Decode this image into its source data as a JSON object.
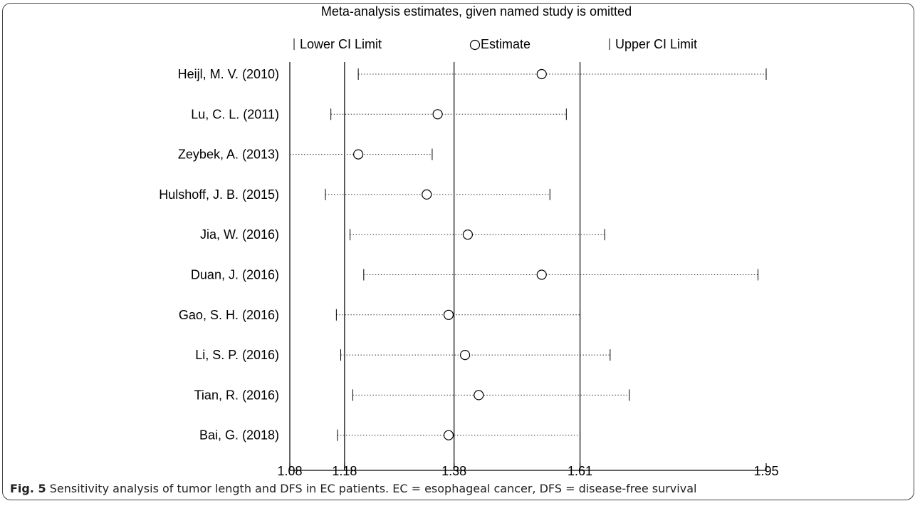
{
  "caption": {
    "label": "Fig. 5",
    "text": "Sensitivity analysis of tumor length and DFS in EC patients. EC = esophageal cancer, DFS = disease-free survival"
  },
  "chart_data": {
    "type": "forest-sensitivity",
    "title": "Meta-analysis estimates, given named study is omitted",
    "legend": {
      "lower": "Lower CI Limit",
      "estimate": "Estimate",
      "upper": "Upper CI Limit",
      "placement": "top"
    },
    "xlim": [
      1.08,
      1.95
    ],
    "x_ticks": [
      1.08,
      1.18,
      1.38,
      1.61,
      1.95
    ],
    "x_tick_labels": [
      "1.08",
      "1.18",
      "1.38",
      "1.61",
      "1.95"
    ],
    "reference_lines": [
      1.18,
      1.38,
      1.61
    ],
    "studies": [
      {
        "name": "Heijl, M. V. (2010)",
        "lower": 1.205,
        "estimate": 1.54,
        "upper": 1.95
      },
      {
        "name": "Lu, C. L. (2011)",
        "lower": 1.155,
        "estimate": 1.35,
        "upper": 1.585
      },
      {
        "name": "Zeybek, A. (2013)",
        "lower": 1.08,
        "estimate": 1.205,
        "upper": 1.34
      },
      {
        "name": "Hulshoff, J. B. (2015)",
        "lower": 1.145,
        "estimate": 1.33,
        "upper": 1.555
      },
      {
        "name": "Jia, W. (2016)",
        "lower": 1.19,
        "estimate": 1.405,
        "upper": 1.655
      },
      {
        "name": "Duan, J. (2016)",
        "lower": 1.215,
        "estimate": 1.54,
        "upper": 1.935
      },
      {
        "name": "Gao, S. H. (2016)",
        "lower": 1.165,
        "estimate": 1.37,
        "upper": 1.61
      },
      {
        "name": "Li, S. P. (2016)",
        "lower": 1.173,
        "estimate": 1.4,
        "upper": 1.665
      },
      {
        "name": "Tian, R. (2016)",
        "lower": 1.195,
        "estimate": 1.425,
        "upper": 1.7
      },
      {
        "name": "Bai, G. (2018)",
        "lower": 1.167,
        "estimate": 1.37,
        "upper": 1.61
      }
    ]
  }
}
